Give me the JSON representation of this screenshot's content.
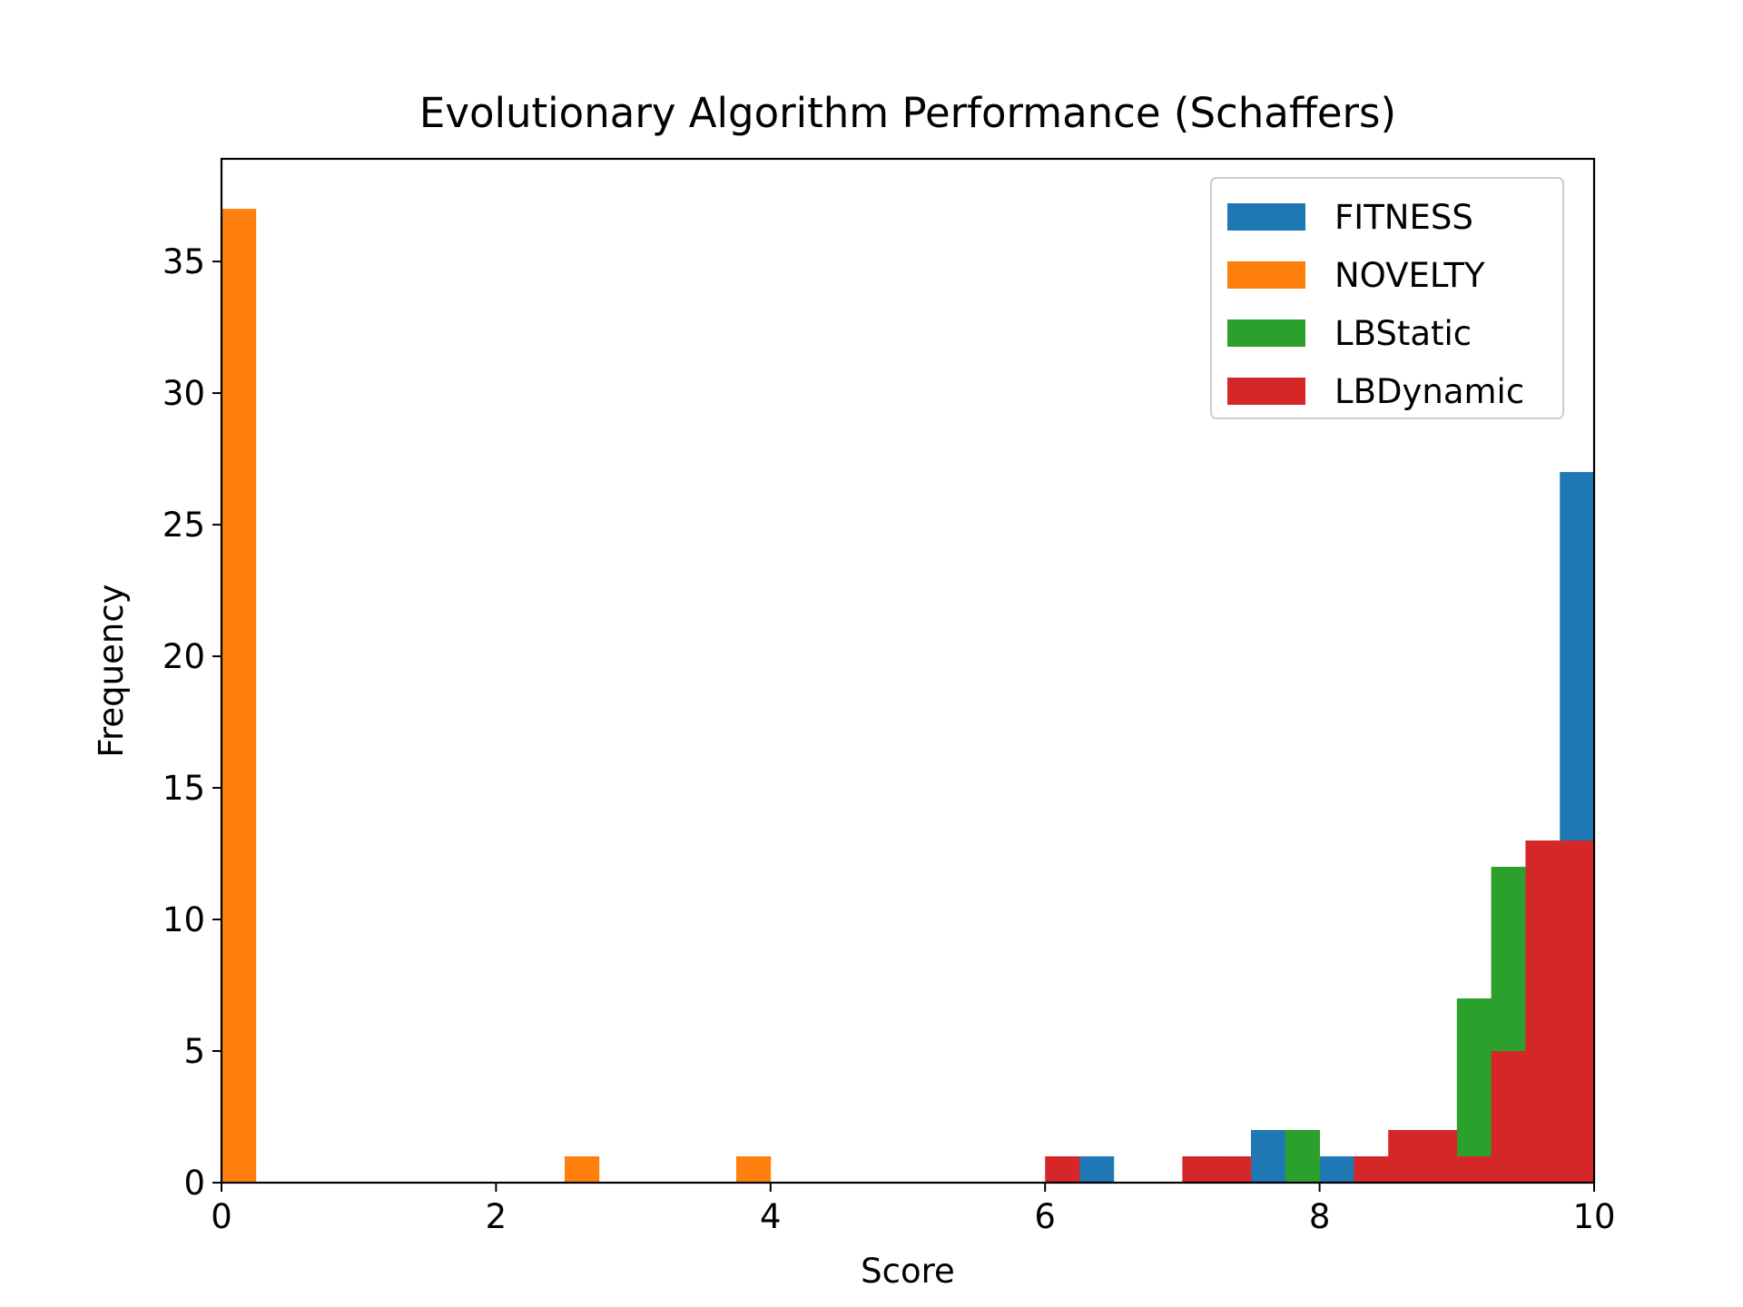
{
  "chart_data": {
    "type": "bar",
    "title": "Evolutionary Algorithm Performance (Schaffers)",
    "xlabel": "Score",
    "ylabel": "Frequency",
    "xlim": [
      0,
      10
    ],
    "ylim": [
      0,
      38.9
    ],
    "xticks": [
      0,
      2,
      4,
      6,
      8,
      10
    ],
    "xtick_labels": [
      "0",
      "2",
      "4",
      "6",
      "8",
      "10"
    ],
    "yticks": [
      0,
      5,
      10,
      15,
      20,
      25,
      30,
      35
    ],
    "ytick_labels": [
      "0",
      "5",
      "10",
      "15",
      "20",
      "25",
      "30",
      "35"
    ],
    "grid": false,
    "legend_position": "top-right",
    "bin_edges": [
      0,
      0.25,
      0.5,
      0.75,
      1.0,
      1.25,
      1.5,
      1.75,
      2.0,
      2.25,
      2.5,
      2.75,
      3.0,
      3.25,
      3.5,
      3.75,
      4.0,
      4.25,
      4.5,
      4.75,
      5.0,
      5.25,
      5.5,
      5.75,
      6.0,
      6.25,
      6.5,
      6.75,
      7.0,
      7.25,
      7.5,
      7.75,
      8.0,
      8.25,
      8.5,
      8.75,
      9.0,
      9.25,
      9.5,
      9.75,
      10.0
    ],
    "series": [
      {
        "name": "FITNESS",
        "color": "#1f77b4",
        "values": [
          0,
          0,
          0,
          0,
          0,
          0,
          0,
          0,
          0,
          0,
          0,
          0,
          0,
          0,
          0,
          0,
          0,
          0,
          0,
          0,
          0,
          0,
          0,
          0,
          0,
          1,
          0,
          0,
          0,
          0,
          2,
          0,
          1,
          0,
          0,
          0,
          0,
          0,
          0,
          27
        ]
      },
      {
        "name": "NOVELTY",
        "color": "#ff7f0e",
        "values": [
          37,
          0,
          0,
          0,
          0,
          0,
          0,
          0,
          0,
          0,
          1,
          0,
          0,
          0,
          0,
          1,
          0,
          0,
          0,
          0,
          0,
          0,
          0,
          0,
          0,
          0,
          0,
          0,
          0,
          0,
          0,
          0,
          0,
          0,
          0,
          0,
          0,
          0,
          0,
          0
        ]
      },
      {
        "name": "LBStatic",
        "color": "#2ca02c",
        "values": [
          0,
          0,
          0,
          0,
          0,
          0,
          0,
          0,
          0,
          0,
          0,
          0,
          0,
          0,
          0,
          0,
          0,
          0,
          0,
          0,
          0,
          0,
          0,
          0,
          0,
          0,
          0,
          0,
          0,
          0,
          0,
          2,
          0,
          0,
          0,
          0,
          7,
          12,
          0,
          0
        ]
      },
      {
        "name": "LBDynamic",
        "color": "#d62728",
        "values": [
          0,
          0,
          0,
          0,
          0,
          0,
          0,
          0,
          0,
          0,
          0,
          0,
          0,
          0,
          0,
          0,
          0,
          0,
          0,
          0,
          0,
          0,
          0,
          0,
          1,
          0,
          0,
          0,
          1,
          1,
          0,
          0,
          0,
          1,
          2,
          2,
          1,
          5,
          13,
          13
        ]
      }
    ]
  }
}
